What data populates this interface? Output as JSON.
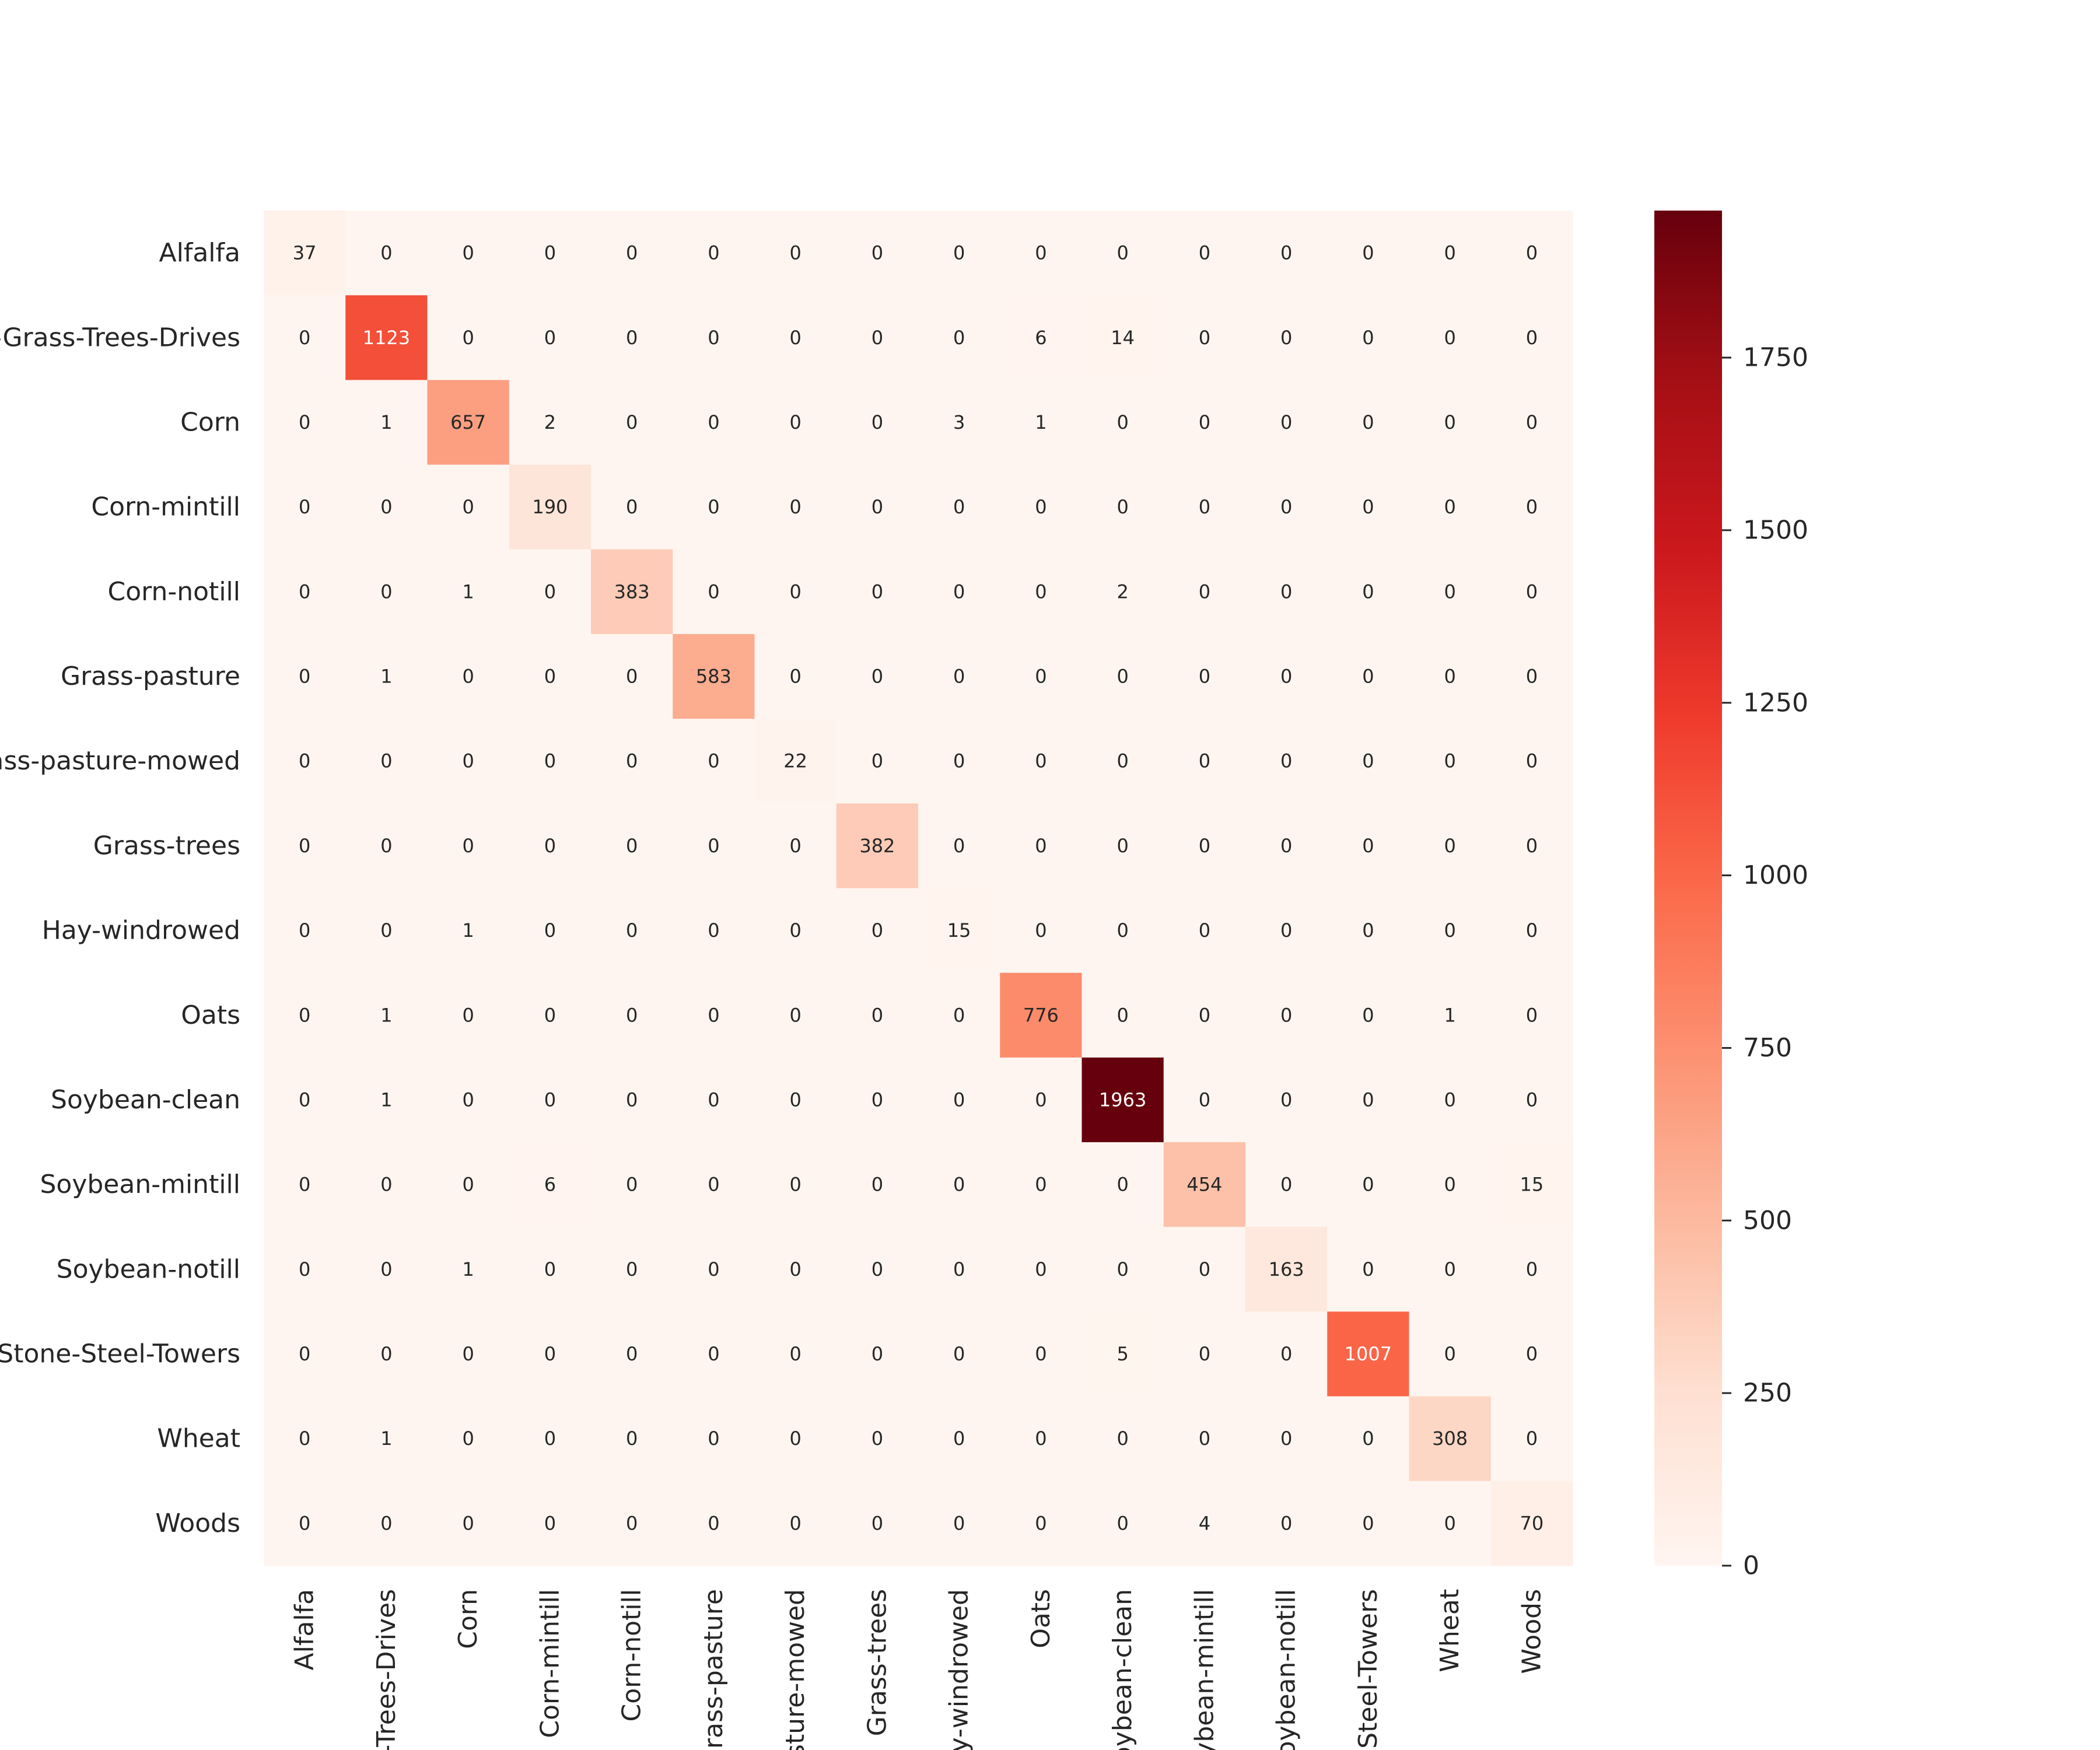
{
  "chart_data": {
    "type": "heatmap",
    "title": "",
    "xlabel": "",
    "ylabel": "",
    "colormap": "Reds",
    "row_labels": [
      "Alfalfa",
      "-Grass-Trees-Drives",
      "Corn",
      "Corn-mintill",
      "Corn-notill",
      "Grass-pasture",
      "rass-pasture-mowed",
      "Grass-trees",
      "Hay-windrowed",
      "Oats",
      "Soybean-clean",
      "Soybean-mintill",
      "Soybean-notill",
      "Stone-Steel-Towers",
      "Wheat",
      "Woods"
    ],
    "col_labels": [
      "Alfalfa",
      "s-Trees-Drives",
      "Corn",
      "Corn-mintill",
      "Corn-notill",
      "Grass-pasture",
      "asture-mowed",
      "Grass-trees",
      "ay-windrowed",
      "Oats",
      "Soybean-clean",
      "oybean-mintill",
      "Soybean-notill",
      "e-Steel-Towers",
      "Wheat",
      "Woods"
    ],
    "values": [
      [
        37,
        0,
        0,
        0,
        0,
        0,
        0,
        0,
        0,
        0,
        0,
        0,
        0,
        0,
        0,
        0
      ],
      [
        0,
        1123,
        0,
        0,
        0,
        0,
        0,
        0,
        0,
        6,
        14,
        0,
        0,
        0,
        0,
        0
      ],
      [
        0,
        1,
        657,
        2,
        0,
        0,
        0,
        0,
        3,
        1,
        0,
        0,
        0,
        0,
        0,
        0
      ],
      [
        0,
        0,
        0,
        190,
        0,
        0,
        0,
        0,
        0,
        0,
        0,
        0,
        0,
        0,
        0,
        0
      ],
      [
        0,
        0,
        1,
        0,
        383,
        0,
        0,
        0,
        0,
        0,
        2,
        0,
        0,
        0,
        0,
        0
      ],
      [
        0,
        1,
        0,
        0,
        0,
        583,
        0,
        0,
        0,
        0,
        0,
        0,
        0,
        0,
        0,
        0
      ],
      [
        0,
        0,
        0,
        0,
        0,
        0,
        22,
        0,
        0,
        0,
        0,
        0,
        0,
        0,
        0,
        0
      ],
      [
        0,
        0,
        0,
        0,
        0,
        0,
        0,
        382,
        0,
        0,
        0,
        0,
        0,
        0,
        0,
        0
      ],
      [
        0,
        0,
        1,
        0,
        0,
        0,
        0,
        0,
        15,
        0,
        0,
        0,
        0,
        0,
        0,
        0
      ],
      [
        0,
        1,
        0,
        0,
        0,
        0,
        0,
        0,
        0,
        776,
        0,
        0,
        0,
        0,
        1,
        0
      ],
      [
        0,
        1,
        0,
        0,
        0,
        0,
        0,
        0,
        0,
        0,
        1963,
        0,
        0,
        0,
        0,
        0
      ],
      [
        0,
        0,
        0,
        6,
        0,
        0,
        0,
        0,
        0,
        0,
        0,
        454,
        0,
        0,
        0,
        15
      ],
      [
        0,
        0,
        1,
        0,
        0,
        0,
        0,
        0,
        0,
        0,
        0,
        0,
        163,
        0,
        0,
        0
      ],
      [
        0,
        0,
        0,
        0,
        0,
        0,
        0,
        0,
        0,
        0,
        5,
        0,
        0,
        1007,
        0,
        0
      ],
      [
        0,
        1,
        0,
        0,
        0,
        0,
        0,
        0,
        0,
        0,
        0,
        0,
        0,
        0,
        308,
        0
      ],
      [
        0,
        0,
        0,
        0,
        0,
        0,
        0,
        0,
        0,
        0,
        0,
        4,
        0,
        0,
        0,
        70
      ]
    ],
    "colorbar": {
      "min": 0,
      "max": 1963,
      "ticks": [
        0,
        250,
        500,
        750,
        1000,
        1250,
        1500,
        1750
      ]
    }
  }
}
